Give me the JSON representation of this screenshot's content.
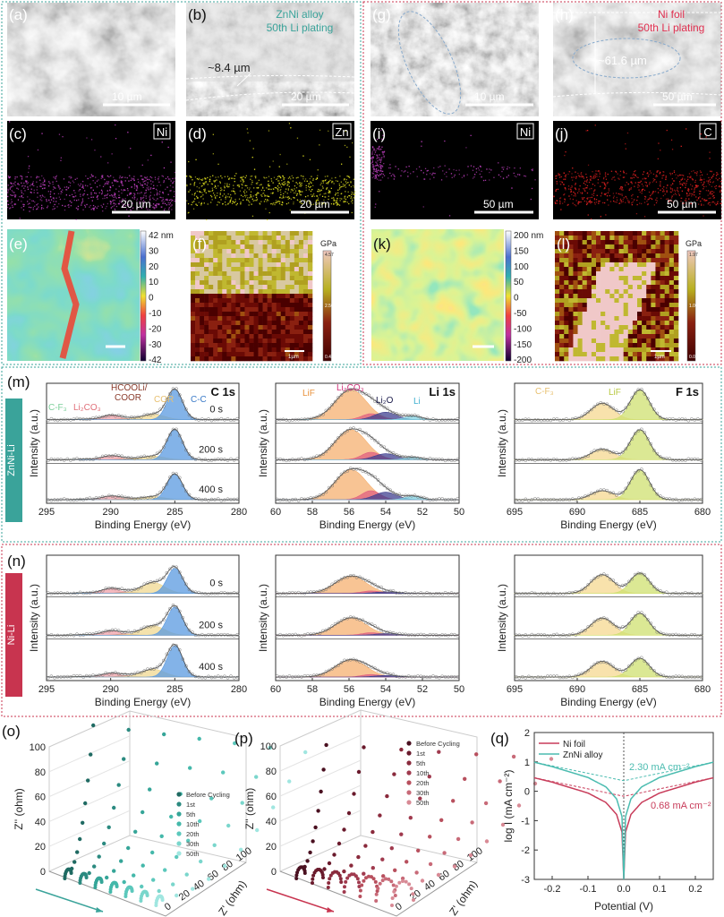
{
  "colors": {
    "teal": "#3aa39a",
    "red": "#c8344f",
    "znni": "#4bbcb0",
    "ni": "#c83c5a"
  },
  "sem": {
    "a": {
      "label": "(a)",
      "scale": "10 µm"
    },
    "b": {
      "label": "(b)",
      "scale": "20 µm",
      "note1": "ZnNi alloy",
      "note2": "50th Li plating",
      "thickness": "~8.4 µm"
    },
    "g": {
      "label": "(g)",
      "scale": "10 µm"
    },
    "h": {
      "label": "(h)",
      "scale": "50 µm",
      "note1": "Ni foil",
      "note2": "50th Li plating",
      "thickness": "~61.6 µm"
    }
  },
  "eds": {
    "c": {
      "label": "(c)",
      "element": "Ni",
      "scale": "20 µm",
      "color": "#c040c0"
    },
    "d": {
      "label": "(d)",
      "element": "Zn",
      "scale": "20 µm",
      "color": "#e0e020"
    },
    "i": {
      "label": "(i)",
      "element": "Ni",
      "scale": "50 µm",
      "color": "#c040c0"
    },
    "j": {
      "label": "(j)",
      "element": "C",
      "scale": "50 µm",
      "color": "#e02020"
    }
  },
  "afm": {
    "e": {
      "label": "(e)",
      "ticks": [
        "42 nm",
        "30",
        "20",
        "10",
        "0",
        "-10",
        "-20",
        "-30",
        "-42"
      ]
    },
    "k": {
      "label": "(k)",
      "ticks": [
        "200 nm",
        "150",
        "100",
        "50",
        "0",
        "-50",
        "-100",
        "-150",
        "-200"
      ]
    }
  },
  "modulus": {
    "f": {
      "label": "(f)",
      "unit": "GPa",
      "max": "4.57",
      "mid": "2.50",
      "min": "0.43",
      "scale": "1µm"
    },
    "l": {
      "label": "(l)",
      "unit": "GPa",
      "max": "1.97",
      "mid": "1.00",
      "min": "0.03",
      "scale": "1µm"
    }
  },
  "xps": {
    "m": {
      "label": "(m)",
      "tag": "ZnNi-Li"
    },
    "n": {
      "label": "(n)",
      "tag": "Ni-Li"
    },
    "ylabel": "Intensity (a.u.)",
    "xlabel": "Binding Energy (eV)",
    "depths": [
      "0 s",
      "200 s",
      "400 s"
    ],
    "panels": [
      {
        "title": "C 1s",
        "xlim": [
          295,
          280
        ],
        "ticks": [
          295,
          290,
          285,
          280
        ],
        "peak_labels": [
          {
            "text": "C-F₃",
            "color": "#7ccf9a"
          },
          {
            "text": "Li₂CO₃",
            "color": "#e0707a"
          },
          {
            "text": "HCOOLi/",
            "color": "#8a3a2a"
          },
          {
            "text": "COOR",
            "color": "#8a3a2a"
          },
          {
            "text": "COR",
            "color": "#e8c070"
          },
          {
            "text": "C-C",
            "color": "#3a7ac8"
          }
        ],
        "components": [
          {
            "name": "C-F3",
            "center": 292.0,
            "sigma": 0.7,
            "color": "#9fdcb4"
          },
          {
            "name": "Li2CO3",
            "center": 290.0,
            "sigma": 0.7,
            "color": "#f0a0a8"
          },
          {
            "name": "HCOOLi/COOR",
            "center": 288.8,
            "sigma": 0.6,
            "color": "#d49a8a"
          },
          {
            "name": "COR",
            "center": 286.7,
            "sigma": 0.9,
            "color": "#f0d890"
          },
          {
            "name": "C-C",
            "center": 285.0,
            "sigma": 0.6,
            "color": "#5a9ae0"
          }
        ],
        "m_amps": [
          [
            0.02,
            0.15,
            0.04,
            0.18,
            1.0
          ],
          [
            0.02,
            0.13,
            0.04,
            0.12,
            1.0
          ],
          [
            0.02,
            0.12,
            0.04,
            0.1,
            0.85
          ]
        ],
        "n_amps": [
          [
            0.02,
            0.16,
            0.05,
            0.35,
            0.8
          ],
          [
            0.02,
            0.14,
            0.05,
            0.3,
            0.9
          ],
          [
            0.02,
            0.12,
            0.05,
            0.25,
            1.0
          ]
        ]
      },
      {
        "title": "Li 1s",
        "xlim": [
          60,
          50
        ],
        "ticks": [
          60,
          58,
          56,
          54,
          52,
          50
        ],
        "peak_labels": [
          {
            "text": "LiF",
            "color": "#e8903a"
          },
          {
            "text": "Li₂CO₃",
            "color": "#d0307a"
          },
          {
            "text": "Li₂O",
            "color": "#1a1a4a"
          },
          {
            "text": "Li",
            "color": "#40b0d0"
          }
        ],
        "components": [
          {
            "name": "LiF",
            "center": 55.9,
            "sigma": 0.85,
            "color": "#f5b070"
          },
          {
            "name": "Li2CO3",
            "center": 54.8,
            "sigma": 0.5,
            "color": "#e06080"
          },
          {
            "name": "Li2O",
            "center": 54.0,
            "sigma": 0.6,
            "color": "#404090"
          },
          {
            "name": "Li",
            "center": 52.5,
            "sigma": 0.45,
            "color": "#80d0e0"
          }
        ],
        "m_amps": [
          [
            1.0,
            0.2,
            0.25,
            0.12
          ],
          [
            1.0,
            0.25,
            0.2,
            0.08
          ],
          [
            1.0,
            0.3,
            0.25,
            0.12
          ]
        ],
        "n_amps": [
          [
            0.55,
            0.08,
            0.05,
            0.0
          ],
          [
            0.55,
            0.08,
            0.05,
            0.0
          ],
          [
            0.55,
            0.08,
            0.05,
            0.0
          ]
        ]
      },
      {
        "title": "F 1s",
        "xlim": [
          695,
          680
        ],
        "ticks": [
          695,
          690,
          685,
          680
        ],
        "peak_labels": [
          {
            "text": "C-F₃",
            "color": "#e8c070"
          },
          {
            "text": "LiF",
            "color": "#b8c840"
          }
        ],
        "components": [
          {
            "name": "C-F3",
            "center": 688.0,
            "sigma": 0.9,
            "color": "#f5d890"
          },
          {
            "name": "LiF",
            "center": 685.0,
            "sigma": 0.75,
            "color": "#cfe070"
          }
        ],
        "m_amps": [
          [
            0.55,
            1.0
          ],
          [
            0.35,
            1.0
          ],
          [
            0.3,
            1.0
          ]
        ],
        "n_amps": [
          [
            0.6,
            0.65
          ],
          [
            0.55,
            0.7
          ],
          [
            0.5,
            0.6
          ]
        ]
      }
    ]
  },
  "eis": {
    "o": {
      "label": "(o)"
    },
    "p": {
      "label": "(p)"
    },
    "ylabel": "Z'' (ohm)",
    "xlabel": "Z' (ohm)",
    "z_ticks": [
      0,
      20,
      40,
      60,
      80,
      100
    ],
    "depth_ticks": [
      0,
      20,
      40,
      60,
      80,
      100
    ],
    "legend": [
      "Before Cycling",
      "1st",
      "5th",
      "10th",
      "20th",
      "30th",
      "50th"
    ]
  },
  "chart_data": {
    "type": "line",
    "label": "(q)",
    "xlabel": "Potential (V)",
    "ylabel": "log I (mA cm⁻²)",
    "xlim": [
      -0.25,
      0.25
    ],
    "ylim": [
      -3,
      2
    ],
    "xticks": [
      -0.2,
      -0.1,
      0.0,
      0.1,
      0.2
    ],
    "yticks": [
      -3,
      -2,
      -1,
      0,
      1,
      2
    ],
    "legend_position": "top-left",
    "x": [
      -0.25,
      -0.2,
      -0.1,
      -0.05,
      -0.02,
      -0.005,
      0,
      0.005,
      0.02,
      0.05,
      0.1,
      0.2,
      0.25
    ],
    "series": [
      {
        "name": "Ni foil",
        "color": "#c83c5a",
        "y": [
          0.46,
          0.31,
          -0.06,
          -0.38,
          -0.79,
          -1.39,
          -3,
          -1.39,
          -0.79,
          -0.38,
          -0.06,
          0.31,
          0.46
        ],
        "exchange_current_label": "0.68 mA cm⁻²",
        "exchange_log": -0.17
      },
      {
        "name": "ZnNi alloy",
        "color": "#4bbcb0",
        "y": [
          0.99,
          0.84,
          0.47,
          0.15,
          -0.26,
          -0.86,
          -3,
          -0.86,
          -0.26,
          0.15,
          0.47,
          0.84,
          0.99
        ],
        "exchange_current_label": "2.30 mA cm⁻²",
        "exchange_log": 0.36
      }
    ]
  }
}
